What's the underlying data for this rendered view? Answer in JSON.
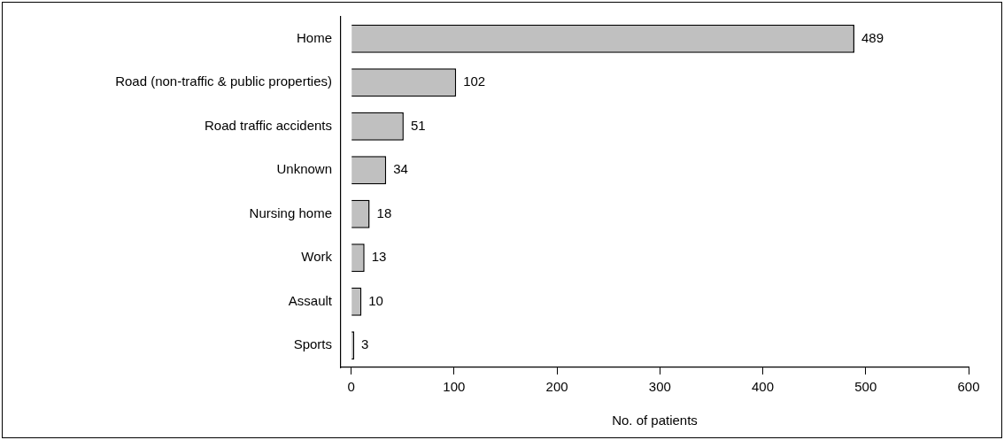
{
  "chart_data": {
    "type": "bar",
    "orientation": "horizontal",
    "xlabel": "No. of patients",
    "categories": [
      "Home",
      "Road (non-traffic & public properties)",
      "Road traffic accidents",
      "Unknown",
      "Nursing home",
      "Work",
      "Assault",
      "Sports"
    ],
    "values": [
      489,
      102,
      51,
      34,
      18,
      13,
      10,
      3
    ],
    "color": "#c0c0c0",
    "xlim": [
      -10,
      600
    ],
    "xticks": [
      0,
      100,
      200,
      300,
      400,
      500,
      600
    ],
    "grid": false,
    "legend": false,
    "data_labels": true
  }
}
